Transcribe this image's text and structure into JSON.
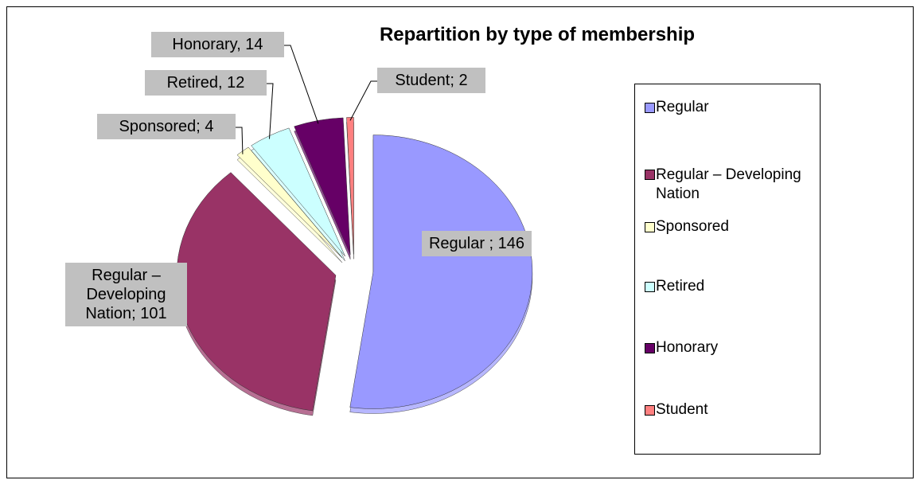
{
  "chart_data": {
    "type": "pie",
    "title": "Repartition by type of membership",
    "categories": [
      "Regular",
      "Regular – Developing Nation",
      "Sponsored",
      "Retired",
      "Honorary",
      "Student"
    ],
    "values": [
      146,
      101,
      4,
      12,
      14,
      2
    ],
    "value_labels": [
      "Regular ; 146",
      "Regular – Developing Nation; 101",
      "Sponsored; 4",
      "Retired, 12",
      "Honorary, 14",
      "Student; 2"
    ],
    "colors": [
      "#9999ff",
      "#993366",
      "#ffffcc",
      "#ccffff",
      "#660066",
      "#ff8080"
    ],
    "legend": "right"
  }
}
